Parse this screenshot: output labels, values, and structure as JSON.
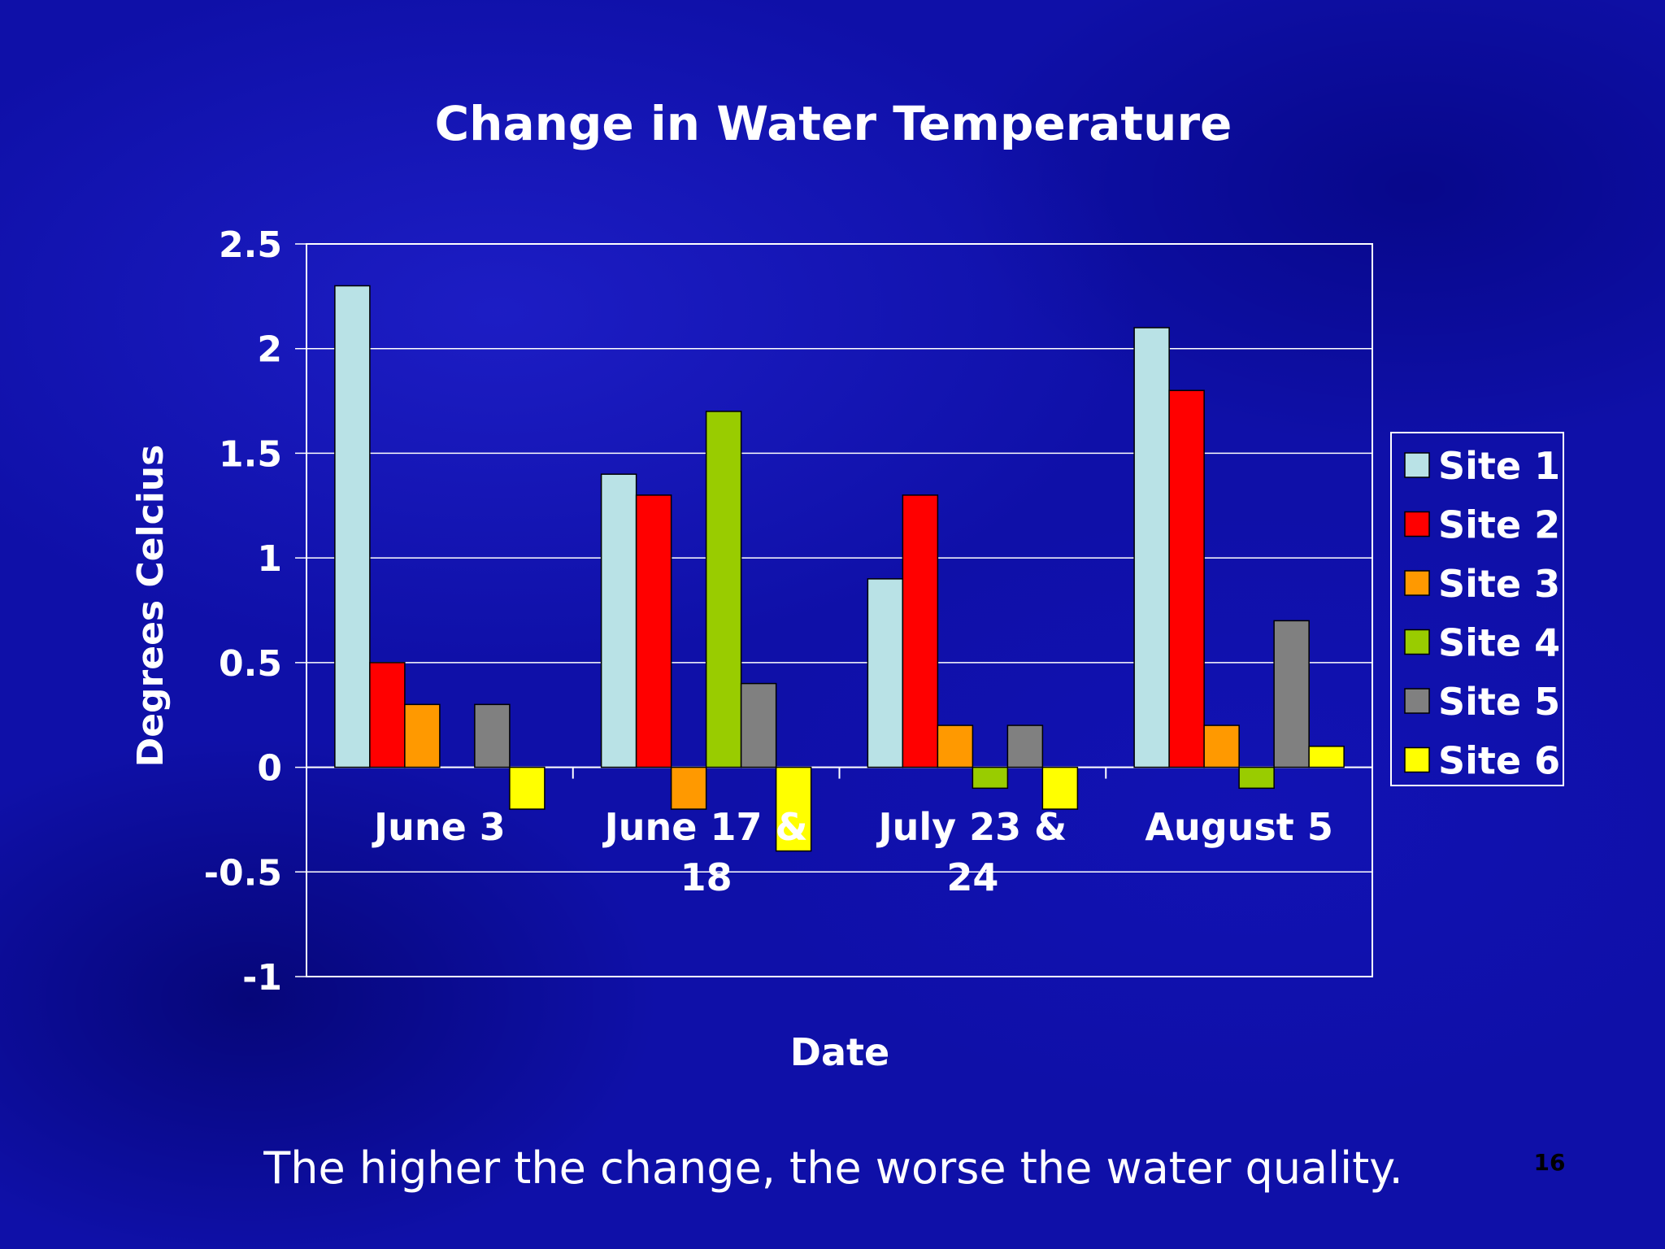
{
  "caption": "The higher the change, the worse the water quality.",
  "slide_number": "16",
  "chart_data": {
    "type": "bar",
    "title": "Change in Water Temperature",
    "xlabel": "Date",
    "ylabel": "Degrees Celcius",
    "categories": [
      [
        "June 3"
      ],
      [
        "June 17 &",
        "18"
      ],
      [
        "July 23 &",
        "24"
      ],
      [
        "August 5"
      ]
    ],
    "ylim": [
      -1,
      2.5
    ],
    "yticks": [
      "2.5",
      "2",
      "1.5",
      "1",
      "0.5",
      "0",
      "-0.5",
      "-1"
    ],
    "ytick_values": [
      2.5,
      2,
      1.5,
      1,
      0.5,
      0,
      -0.5,
      -1
    ],
    "grid": true,
    "legend_position": "right",
    "series": [
      {
        "name": "Site 1",
        "color": "#b9e2e6",
        "values": [
          2.3,
          1.4,
          0.9,
          2.1
        ]
      },
      {
        "name": "Site 2",
        "color": "#ff0000",
        "values": [
          0.5,
          1.3,
          1.3,
          1.8
        ]
      },
      {
        "name": "Site 3",
        "color": "#ff9900",
        "values": [
          0.3,
          -0.2,
          0.2,
          0.2
        ]
      },
      {
        "name": "Site 4",
        "color": "#99cc00",
        "values": [
          0,
          1.7,
          -0.1,
          -0.1
        ]
      },
      {
        "name": "Site 5",
        "color": "#808080",
        "values": [
          0.3,
          0.4,
          0.2,
          0.7
        ]
      },
      {
        "name": "Site 6",
        "color": "#ffff00",
        "values": [
          -0.2,
          -0.4,
          -0.2,
          0.1
        ]
      }
    ]
  }
}
